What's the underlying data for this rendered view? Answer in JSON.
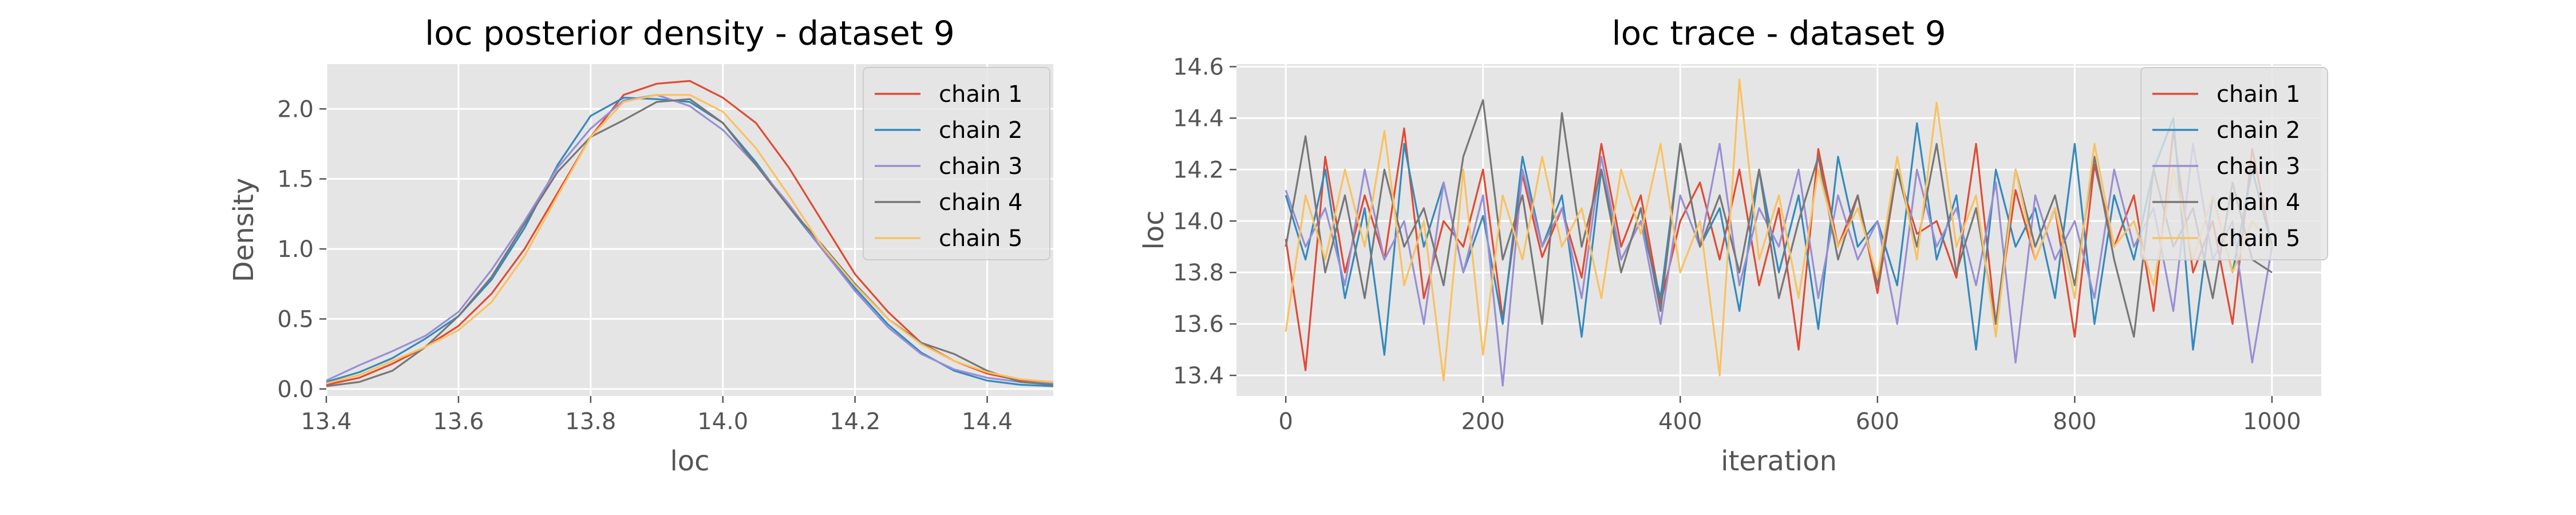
{
  "chart_data": [
    {
      "type": "line",
      "subtype": "density",
      "title": "loc posterior density - dataset 9",
      "xlabel": "loc",
      "ylabel": "Density",
      "xlim": [
        13.4,
        14.5
      ],
      "ylim": [
        -0.05,
        2.32
      ],
      "xticks": [
        13.4,
        13.6,
        13.8,
        14.0,
        14.2,
        14.4
      ],
      "xtick_labels": [
        "13.4",
        "13.6",
        "13.8",
        "14.0",
        "14.2",
        "14.4"
      ],
      "yticks": [
        0.0,
        0.5,
        1.0,
        1.5,
        2.0
      ],
      "ytick_labels": [
        "0.0",
        "0.5",
        "1.0",
        "1.5",
        "2.0"
      ],
      "grid": true,
      "legend_position": "top-right",
      "series": [
        {
          "name": "chain 1",
          "color": "#E24A33",
          "x": [
            13.4,
            13.45,
            13.5,
            13.55,
            13.6,
            13.65,
            13.7,
            13.75,
            13.8,
            13.85,
            13.9,
            13.95,
            14.0,
            14.05,
            14.1,
            14.15,
            14.2,
            14.25,
            14.3,
            14.35,
            14.4,
            14.45,
            14.5
          ],
          "y": [
            0.03,
            0.08,
            0.18,
            0.3,
            0.45,
            0.68,
            1.0,
            1.4,
            1.8,
            2.1,
            2.18,
            2.2,
            2.08,
            1.9,
            1.58,
            1.2,
            0.82,
            0.55,
            0.33,
            0.2,
            0.11,
            0.06,
            0.04
          ]
        },
        {
          "name": "chain 2",
          "color": "#348ABD",
          "x": [
            13.4,
            13.45,
            13.5,
            13.55,
            13.6,
            13.65,
            13.7,
            13.75,
            13.8,
            13.85,
            13.9,
            13.95,
            14.0,
            14.05,
            14.1,
            14.15,
            14.2,
            14.25,
            14.3,
            14.35,
            14.4,
            14.45,
            14.5
          ],
          "y": [
            0.05,
            0.12,
            0.22,
            0.36,
            0.52,
            0.78,
            1.15,
            1.6,
            1.95,
            2.08,
            2.07,
            2.05,
            1.9,
            1.62,
            1.3,
            1.0,
            0.72,
            0.46,
            0.26,
            0.13,
            0.06,
            0.03,
            0.02
          ]
        },
        {
          "name": "chain 3",
          "color": "#988ED5",
          "x": [
            13.4,
            13.45,
            13.5,
            13.55,
            13.6,
            13.65,
            13.7,
            13.75,
            13.8,
            13.85,
            13.9,
            13.95,
            14.0,
            14.05,
            14.1,
            14.15,
            14.2,
            14.25,
            14.3,
            14.35,
            14.4,
            14.45,
            14.5
          ],
          "y": [
            0.06,
            0.17,
            0.27,
            0.38,
            0.55,
            0.85,
            1.2,
            1.58,
            1.86,
            2.06,
            2.1,
            2.02,
            1.85,
            1.6,
            1.32,
            1.0,
            0.7,
            0.44,
            0.25,
            0.14,
            0.08,
            0.05,
            0.04
          ]
        },
        {
          "name": "chain 4",
          "color": "#777777",
          "x": [
            13.4,
            13.45,
            13.5,
            13.55,
            13.6,
            13.65,
            13.7,
            13.75,
            13.8,
            13.85,
            13.9,
            13.95,
            14.0,
            14.05,
            14.1,
            14.15,
            14.2,
            14.25,
            14.3,
            14.35,
            14.4,
            14.45,
            14.5
          ],
          "y": [
            0.02,
            0.05,
            0.13,
            0.3,
            0.52,
            0.8,
            1.18,
            1.55,
            1.8,
            1.92,
            2.05,
            2.07,
            1.9,
            1.6,
            1.3,
            1.03,
            0.75,
            0.5,
            0.33,
            0.25,
            0.13,
            0.05,
            0.03
          ]
        },
        {
          "name": "chain 5",
          "color": "#FBC15E",
          "x": [
            13.4,
            13.45,
            13.5,
            13.55,
            13.6,
            13.65,
            13.7,
            13.75,
            13.8,
            13.85,
            13.9,
            13.95,
            14.0,
            14.05,
            14.1,
            14.15,
            14.2,
            14.25,
            14.3,
            14.35,
            14.4,
            14.45,
            14.5
          ],
          "y": [
            0.04,
            0.1,
            0.2,
            0.3,
            0.42,
            0.62,
            0.95,
            1.38,
            1.8,
            2.05,
            2.1,
            2.1,
            1.98,
            1.72,
            1.38,
            1.02,
            0.74,
            0.5,
            0.32,
            0.2,
            0.12,
            0.07,
            0.05
          ]
        }
      ]
    },
    {
      "type": "line",
      "subtype": "trace",
      "title": "loc trace - dataset 9",
      "xlabel": "iteration",
      "ylabel": "loc",
      "xlim": [
        -50,
        1050
      ],
      "ylim": [
        13.32,
        14.61
      ],
      "xticks": [
        0,
        200,
        400,
        600,
        800,
        1000
      ],
      "xtick_labels": [
        "0",
        "200",
        "400",
        "600",
        "800",
        "1000"
      ],
      "yticks": [
        13.4,
        13.6,
        13.8,
        14.0,
        14.2,
        14.4,
        14.6
      ],
      "ytick_labels": [
        "13.4",
        "13.6",
        "13.8",
        "14.0",
        "14.2",
        "14.4",
        "14.6"
      ],
      "grid": true,
      "legend_position": "top-right",
      "series": [
        {
          "name": "chain 1",
          "color": "#E24A33",
          "x": [
            0,
            20,
            40,
            60,
            80,
            100,
            120,
            140,
            160,
            180,
            200,
            220,
            240,
            260,
            280,
            300,
            320,
            340,
            360,
            380,
            400,
            420,
            440,
            460,
            480,
            500,
            520,
            540,
            560,
            580,
            600,
            620,
            640,
            660,
            680,
            700,
            720,
            740,
            760,
            780,
            800,
            820,
            840,
            860,
            880,
            900,
            920,
            940,
            960,
            980,
            1000
          ],
          "y": [
            13.93,
            13.42,
            14.25,
            13.8,
            14.1,
            13.85,
            14.36,
            13.7,
            14.0,
            13.9,
            14.2,
            13.62,
            14.18,
            13.86,
            14.05,
            13.78,
            14.3,
            13.9,
            14.1,
            13.68,
            14.0,
            14.15,
            13.85,
            14.2,
            13.75,
            14.05,
            13.5,
            14.28,
            13.9,
            14.1,
            13.72,
            14.2,
            13.95,
            14.0,
            13.78,
            14.3,
            13.6,
            14.12,
            13.85,
            14.05,
            13.55,
            14.22,
            13.9,
            14.1,
            13.65,
            14.35,
            13.8,
            14.0,
            13.6,
            14.28,
            13.9
          ]
        },
        {
          "name": "chain 2",
          "color": "#348ABD",
          "x": [
            0,
            20,
            40,
            60,
            80,
            100,
            120,
            140,
            160,
            180,
            200,
            220,
            240,
            260,
            280,
            300,
            320,
            340,
            360,
            380,
            400,
            420,
            440,
            460,
            480,
            500,
            520,
            540,
            560,
            580,
            600,
            620,
            640,
            660,
            680,
            700,
            720,
            740,
            760,
            780,
            800,
            820,
            840,
            860,
            880,
            900,
            920,
            940,
            960,
            980,
            1000
          ],
          "y": [
            14.1,
            13.85,
            14.2,
            13.7,
            14.05,
            13.48,
            14.3,
            13.9,
            14.15,
            13.8,
            14.02,
            13.6,
            14.25,
            13.9,
            14.1,
            13.55,
            14.2,
            13.85,
            14.0,
            13.7,
            14.3,
            13.9,
            14.05,
            13.65,
            14.2,
            13.8,
            14.1,
            13.58,
            14.25,
            13.9,
            14.0,
            13.75,
            14.38,
            13.85,
            14.1,
            13.5,
            14.2,
            13.9,
            14.05,
            13.7,
            14.3,
            13.6,
            14.1,
            13.85,
            14.2,
            14.4,
            13.5,
            14.1,
            13.8,
            14.2,
            13.9
          ]
        },
        {
          "name": "chain 3",
          "color": "#988ED5",
          "x": [
            0,
            20,
            40,
            60,
            80,
            100,
            120,
            140,
            160,
            180,
            200,
            220,
            240,
            260,
            280,
            300,
            320,
            340,
            360,
            380,
            400,
            420,
            440,
            460,
            480,
            500,
            520,
            540,
            560,
            580,
            600,
            620,
            640,
            660,
            680,
            700,
            720,
            740,
            760,
            780,
            800,
            820,
            840,
            860,
            880,
            900,
            920,
            940,
            960,
            980,
            1000
          ],
          "y": [
            14.12,
            13.9,
            14.05,
            13.75,
            14.2,
            13.85,
            14.0,
            13.6,
            14.15,
            13.8,
            14.1,
            13.36,
            14.2,
            13.9,
            14.05,
            13.7,
            14.25,
            13.85,
            14.0,
            13.6,
            14.1,
            13.9,
            14.3,
            13.75,
            14.05,
            13.9,
            14.2,
            13.7,
            14.1,
            13.85,
            14.0,
            13.6,
            14.2,
            13.9,
            14.05,
            13.75,
            14.15,
            13.45,
            14.1,
            13.85,
            14.0,
            13.7,
            14.2,
            13.9,
            14.05,
            13.65,
            14.3,
            13.85,
            14.0,
            13.45,
            13.9
          ]
        },
        {
          "name": "chain 4",
          "color": "#777777",
          "x": [
            0,
            20,
            40,
            60,
            80,
            100,
            120,
            140,
            160,
            180,
            200,
            220,
            240,
            260,
            280,
            300,
            320,
            340,
            360,
            380,
            400,
            420,
            440,
            460,
            480,
            500,
            520,
            540,
            560,
            580,
            600,
            620,
            640,
            660,
            680,
            700,
            720,
            740,
            760,
            780,
            800,
            820,
            840,
            860,
            880,
            900,
            920,
            940,
            960,
            980,
            1000
          ],
          "y": [
            13.9,
            14.33,
            13.8,
            14.1,
            13.7,
            14.2,
            13.9,
            14.05,
            13.75,
            14.25,
            14.47,
            13.85,
            14.1,
            13.6,
            14.42,
            13.9,
            14.2,
            13.8,
            14.05,
            13.65,
            14.3,
            13.9,
            14.1,
            13.8,
            14.2,
            13.7,
            14.0,
            14.25,
            13.85,
            14.1,
            13.75,
            14.2,
            13.9,
            14.3,
            13.8,
            14.05,
            13.6,
            14.2,
            13.9,
            14.1,
            13.75,
            14.25,
            13.85,
            13.55,
            14.2,
            13.9,
            14.05,
            13.7,
            14.15,
            13.85,
            13.8
          ]
        },
        {
          "name": "chain 5",
          "color": "#FBC15E",
          "x": [
            0,
            20,
            40,
            60,
            80,
            100,
            120,
            140,
            160,
            180,
            200,
            220,
            240,
            260,
            280,
            300,
            320,
            340,
            360,
            380,
            400,
            420,
            440,
            460,
            480,
            500,
            520,
            540,
            560,
            580,
            600,
            620,
            640,
            660,
            680,
            700,
            720,
            740,
            760,
            780,
            800,
            820,
            840,
            860,
            880,
            900,
            920,
            940,
            960,
            980,
            1000
          ],
          "y": [
            13.57,
            14.1,
            13.85,
            14.2,
            13.9,
            14.35,
            13.75,
            14.0,
            13.38,
            14.2,
            13.48,
            14.1,
            13.85,
            14.25,
            13.9,
            14.05,
            13.7,
            14.2,
            13.95,
            14.3,
            13.8,
            14.0,
            13.4,
            14.55,
            13.85,
            14.1,
            13.7,
            14.2,
            13.9,
            14.05,
            13.78,
            14.25,
            13.85,
            14.46,
            13.9,
            14.1,
            13.55,
            14.2,
            13.85,
            14.05,
            13.7,
            14.3,
            13.9,
            14.0,
            13.75,
            14.2,
            13.85,
            14.1,
            13.8,
            14.0,
            13.9
          ]
        }
      ]
    }
  ]
}
